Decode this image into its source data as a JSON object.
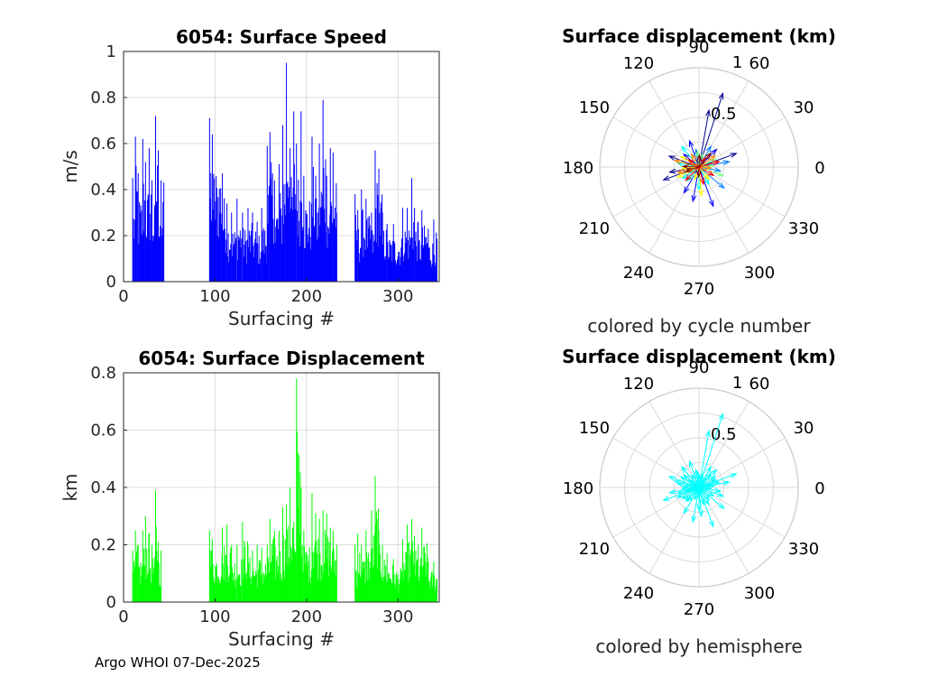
{
  "footer": "Argo WHOI 07-Dec-2025",
  "chart_data": [
    {
      "type": "bar",
      "title": "6054: Surface Speed",
      "xlabel": "Surfacing #",
      "ylabel": "m/s",
      "xlim": [
        0,
        345
      ],
      "ylim": [
        0,
        1
      ],
      "xticks": [
        0,
        100,
        200,
        300
      ],
      "yticks": [
        0,
        0.2,
        0.4,
        0.6,
        0.8,
        1
      ],
      "ytick_labels": [
        "0",
        "0.2",
        "0.4",
        "0.6",
        "0.8",
        "1"
      ],
      "color": "#0000ff",
      "grid": true,
      "peaks": [
        [
          10,
          0.45
        ],
        [
          13,
          0.63
        ],
        [
          16,
          0.47
        ],
        [
          21,
          0.62
        ],
        [
          24,
          0.52
        ],
        [
          28,
          0.58
        ],
        [
          31,
          0.44
        ],
        [
          35,
          0.72
        ],
        [
          38,
          0.57
        ],
        [
          41,
          0.44
        ],
        [
          44,
          0.43
        ],
        [
          94,
          0.71
        ],
        [
          97,
          0.64
        ],
        [
          108,
          0.47
        ],
        [
          113,
          0.34
        ],
        [
          118,
          0.3
        ],
        [
          124,
          0.36
        ],
        [
          130,
          0.3
        ],
        [
          136,
          0.32
        ],
        [
          141,
          0.3
        ],
        [
          146,
          0.26
        ],
        [
          151,
          0.32
        ],
        [
          157,
          0.59
        ],
        [
          160,
          0.65
        ],
        [
          165,
          0.44
        ],
        [
          170,
          0.51
        ],
        [
          174,
          0.68
        ],
        [
          178,
          0.95
        ],
        [
          182,
          0.58
        ],
        [
          186,
          0.74
        ],
        [
          189,
          0.6
        ],
        [
          194,
          0.74
        ],
        [
          197,
          0.46
        ],
        [
          206,
          0.63
        ],
        [
          210,
          0.46
        ],
        [
          214,
          0.6
        ],
        [
          218,
          0.79
        ],
        [
          222,
          0.46
        ],
        [
          226,
          0.58
        ],
        [
          229,
          0.56
        ],
        [
          233,
          0.3
        ],
        [
          253,
          0.38
        ],
        [
          256,
          0.31
        ],
        [
          260,
          0.4
        ],
        [
          265,
          0.36
        ],
        [
          271,
          0.3
        ],
        [
          275,
          0.57
        ],
        [
          279,
          0.49
        ],
        [
          283,
          0.3
        ],
        [
          288,
          0.25
        ],
        [
          295,
          0.25
        ],
        [
          305,
          0.32
        ],
        [
          310,
          0.32
        ],
        [
          315,
          0.45
        ],
        [
          318,
          0.32
        ],
        [
          322,
          0.26
        ],
        [
          326,
          0.31
        ],
        [
          333,
          0.23
        ],
        [
          339,
          0.27
        ]
      ]
    },
    {
      "type": "bar",
      "title": "6054: Surface Displacement",
      "xlabel": "Surfacing #",
      "ylabel": "km",
      "xlim": [
        0,
        345
      ],
      "ylim": [
        0,
        0.8
      ],
      "xticks": [
        0,
        100,
        200,
        300
      ],
      "yticks": [
        0,
        0.2,
        0.4,
        0.6,
        0.8
      ],
      "ytick_labels": [
        "0",
        "0.2",
        "0.4",
        "0.6",
        "0.8"
      ],
      "color": "#00ff00",
      "grid": true,
      "peaks": [
        [
          10,
          0.18
        ],
        [
          13,
          0.25
        ],
        [
          16,
          0.2
        ],
        [
          21,
          0.25
        ],
        [
          24,
          0.3
        ],
        [
          28,
          0.24
        ],
        [
          31,
          0.2
        ],
        [
          35,
          0.39
        ],
        [
          38,
          0.21
        ],
        [
          41,
          0.18
        ],
        [
          94,
          0.25
        ],
        [
          97,
          0.22
        ],
        [
          108,
          0.26
        ],
        [
          113,
          0.27
        ],
        [
          118,
          0.2
        ],
        [
          124,
          0.2
        ],
        [
          130,
          0.28
        ],
        [
          136,
          0.2
        ],
        [
          141,
          0.18
        ],
        [
          146,
          0.2
        ],
        [
          151,
          0.19
        ],
        [
          157,
          0.2
        ],
        [
          160,
          0.29
        ],
        [
          165,
          0.25
        ],
        [
          170,
          0.25
        ],
        [
          174,
          0.33
        ],
        [
          178,
          0.34
        ],
        [
          182,
          0.4
        ],
        [
          186,
          0.28
        ],
        [
          189,
          0.78
        ],
        [
          194,
          0.4
        ],
        [
          197,
          0.25
        ],
        [
          206,
          0.38
        ],
        [
          210,
          0.31
        ],
        [
          214,
          0.29
        ],
        [
          218,
          0.32
        ],
        [
          222,
          0.31
        ],
        [
          226,
          0.26
        ],
        [
          229,
          0.25
        ],
        [
          233,
          0.2
        ],
        [
          253,
          0.2
        ],
        [
          256,
          0.24
        ],
        [
          260,
          0.2
        ],
        [
          265,
          0.25
        ],
        [
          271,
          0.32
        ],
        [
          275,
          0.44
        ],
        [
          279,
          0.25
        ],
        [
          283,
          0.2
        ],
        [
          288,
          0.17
        ],
        [
          295,
          0.15
        ],
        [
          305,
          0.22
        ],
        [
          310,
          0.27
        ],
        [
          315,
          0.29
        ],
        [
          318,
          0.23
        ],
        [
          322,
          0.2
        ],
        [
          326,
          0.26
        ],
        [
          333,
          0.14
        ],
        [
          339,
          0.14
        ]
      ]
    },
    {
      "type": "polar",
      "title": "Surface displacement (km)",
      "subtitle": "colored by cycle number",
      "rlim": [
        0,
        1
      ],
      "rticks": [
        0.5,
        1
      ],
      "rtick_labels": [
        "0.5",
        "1"
      ],
      "angle_ticks": [
        0,
        30,
        60,
        90,
        120,
        150,
        180,
        210,
        240,
        270,
        300,
        330
      ],
      "angle_tick_labels": [
        "0",
        "30",
        "60",
        "90",
        "120",
        "150",
        "180",
        "210",
        "240",
        "270",
        "300",
        "330"
      ],
      "colormap": [
        "#00008f",
        "#0000ff",
        "#0080ff",
        "#00ffff",
        "#80ff80",
        "#ffff00",
        "#ff8000",
        "#ff0000",
        "#800000"
      ],
      "vectors_km_deg": [
        [
          0.78,
          72
        ],
        [
          0.58,
          80
        ],
        [
          0.4,
          20
        ],
        [
          0.32,
          160
        ],
        [
          0.3,
          190
        ],
        [
          0.38,
          200
        ],
        [
          0.35,
          260
        ],
        [
          0.42,
          290
        ],
        [
          0.25,
          45
        ],
        [
          0.28,
          110
        ],
        [
          0.2,
          140
        ],
        [
          0.3,
          240
        ],
        [
          0.33,
          320
        ],
        [
          0.22,
          350
        ],
        [
          0.31,
          10
        ],
        [
          0.24,
          60
        ],
        [
          0.18,
          100
        ],
        [
          0.27,
          130
        ],
        [
          0.22,
          170
        ],
        [
          0.2,
          215
        ],
        [
          0.18,
          230
        ],
        [
          0.23,
          270
        ],
        [
          0.2,
          300
        ],
        [
          0.26,
          340
        ],
        [
          0.15,
          5
        ],
        [
          0.19,
          25
        ],
        [
          0.14,
          75
        ],
        [
          0.16,
          95
        ],
        [
          0.21,
          150
        ],
        [
          0.17,
          185
        ],
        [
          0.24,
          205
        ],
        [
          0.13,
          250
        ],
        [
          0.29,
          275
        ],
        [
          0.16,
          310
        ],
        [
          0.12,
          355
        ],
        [
          0.25,
          165
        ],
        [
          0.2,
          35
        ],
        [
          0.15,
          120
        ],
        [
          0.22,
          195
        ],
        [
          0.18,
          285
        ],
        [
          0.11,
          55
        ],
        [
          0.13,
          145
        ],
        [
          0.19,
          225
        ],
        [
          0.17,
          330
        ],
        [
          0.21,
          15
        ],
        [
          0.12,
          88
        ],
        [
          0.16,
          178
        ],
        [
          0.1,
          268
        ],
        [
          0.14,
          200
        ],
        [
          0.18,
          50
        ]
      ]
    },
    {
      "type": "polar",
      "title": "Surface displacement (km)",
      "subtitle": "colored by hemisphere",
      "rlim": [
        0,
        1
      ],
      "rticks": [
        0.5,
        1
      ],
      "rtick_labels": [
        "0.5",
        "1"
      ],
      "angle_ticks": [
        0,
        30,
        60,
        90,
        120,
        150,
        180,
        210,
        240,
        270,
        300,
        330
      ],
      "angle_tick_labels": [
        "0",
        "30",
        "60",
        "90",
        "120",
        "150",
        "180",
        "210",
        "240",
        "270",
        "300",
        "330"
      ],
      "color": "#00ffff",
      "vectors_km_deg": [
        [
          0.78,
          72
        ],
        [
          0.58,
          80
        ],
        [
          0.4,
          20
        ],
        [
          0.32,
          160
        ],
        [
          0.3,
          190
        ],
        [
          0.38,
          200
        ],
        [
          0.35,
          260
        ],
        [
          0.42,
          290
        ],
        [
          0.25,
          45
        ],
        [
          0.28,
          110
        ],
        [
          0.2,
          140
        ],
        [
          0.3,
          240
        ],
        [
          0.33,
          320
        ],
        [
          0.22,
          350
        ],
        [
          0.31,
          10
        ],
        [
          0.24,
          60
        ],
        [
          0.18,
          100
        ],
        [
          0.27,
          130
        ],
        [
          0.22,
          170
        ],
        [
          0.2,
          215
        ],
        [
          0.18,
          230
        ],
        [
          0.23,
          270
        ],
        [
          0.2,
          300
        ],
        [
          0.26,
          340
        ],
        [
          0.15,
          5
        ],
        [
          0.19,
          25
        ],
        [
          0.14,
          75
        ],
        [
          0.16,
          95
        ],
        [
          0.21,
          150
        ],
        [
          0.17,
          185
        ],
        [
          0.24,
          205
        ],
        [
          0.13,
          250
        ],
        [
          0.29,
          275
        ],
        [
          0.16,
          310
        ],
        [
          0.12,
          355
        ],
        [
          0.25,
          165
        ],
        [
          0.2,
          35
        ],
        [
          0.15,
          120
        ],
        [
          0.22,
          195
        ],
        [
          0.18,
          285
        ],
        [
          0.11,
          55
        ],
        [
          0.13,
          145
        ],
        [
          0.19,
          225
        ],
        [
          0.17,
          330
        ],
        [
          0.21,
          15
        ],
        [
          0.12,
          88
        ],
        [
          0.16,
          178
        ],
        [
          0.1,
          268
        ],
        [
          0.14,
          200
        ],
        [
          0.18,
          50
        ]
      ]
    }
  ]
}
